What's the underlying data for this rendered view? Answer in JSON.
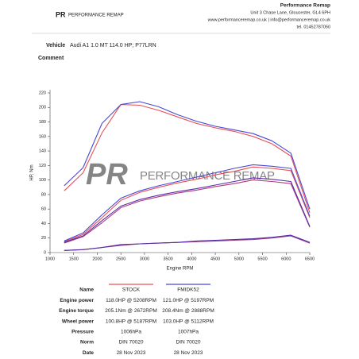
{
  "header": {
    "logo_mark": "PR",
    "logo_name": "PERFORMANCE REMAP",
    "company": "Performance Remap",
    "address": "Unit 3 Chase Lane, Gloucester, GL4 6PH",
    "web": "www.performanceremap.co.uk | info@performanceremap.co.uk",
    "phone": "tel. 01452787050"
  },
  "vehicle": {
    "label": "Vehicle",
    "value": "Audi A1 1.0 MT 114.0 HP; P77LRN"
  },
  "comment": {
    "label": "Comment"
  },
  "chart_data": {
    "type": "line",
    "ylabel": "HP, Nm",
    "xlabel": "Engine RPM",
    "x": [
      1300,
      1700,
      2100,
      2500,
      2900,
      3300,
      3700,
      4100,
      4500,
      4900,
      5300,
      5700,
      6100,
      6500
    ],
    "xlim": [
      1000,
      6500
    ],
    "xticks": [
      1000,
      1500,
      2000,
      2500,
      3000,
      3500,
      4000,
      4500,
      5000,
      5500,
      6000,
      6500
    ],
    "ylim": [
      0,
      220
    ],
    "yticks": [
      0,
      20,
      40,
      60,
      80,
      100,
      120,
      140,
      160,
      180,
      200,
      220
    ],
    "series": [
      {
        "color": "#e8505a",
        "values": [
          85,
          110,
          165,
          204,
          203,
          196,
          187,
          178,
          172,
          167,
          160,
          150,
          133,
          55
        ]
      },
      {
        "color": "#4848d4",
        "values": [
          92,
          117,
          178,
          204,
          208,
          201,
          190,
          181,
          174,
          169,
          164,
          154,
          137,
          60
        ]
      },
      {
        "color": "#e8505a",
        "values": [
          15,
          25,
          48,
          72,
          83,
          90,
          96,
          101,
          107,
          112,
          118,
          116,
          113,
          48
        ]
      },
      {
        "color": "#4848d4",
        "values": [
          16,
          27,
          52,
          75,
          85,
          92,
          98,
          104,
          110,
          116,
          121,
          119,
          116,
          50
        ]
      },
      {
        "color": "#b03a7a",
        "values": [
          13,
          22,
          41,
          62,
          71,
          77,
          82,
          86,
          91,
          95,
          100,
          98,
          95,
          35
        ]
      },
      {
        "color": "#5a2ea8",
        "values": [
          14,
          23,
          44,
          64,
          73,
          79,
          84,
          88,
          93,
          98,
          103,
          101,
          98,
          36
        ]
      },
      {
        "color": "#9a3a80",
        "values": [
          3,
          4,
          7,
          10,
          12,
          13,
          14,
          15,
          16,
          17,
          18,
          20,
          23,
          13
        ]
      },
      {
        "color": "#5a2ea8",
        "values": [
          3,
          4,
          7,
          11,
          12,
          13,
          14,
          16,
          17,
          18,
          19,
          21,
          24,
          14
        ]
      }
    ]
  },
  "table": {
    "header": [
      "Name",
      "STOCK",
      "FMIDK52"
    ],
    "rows": [
      [
        "Engine power",
        "118.0HP @ 5208RPM",
        "121.0HP @ 5197RPM"
      ],
      [
        "Engine torque",
        "205.1Nm @ 2672RPM",
        "208.4Nm @ 2888RPM"
      ],
      [
        "Wheel power",
        "100.8HP @ 5187RPM",
        "103.0HP @ 5112RPM"
      ],
      [
        "Pressure",
        "1006hPa",
        "1007hPa"
      ],
      [
        "Norm",
        "DIN 70020",
        "DIN 70020"
      ],
      [
        "Date",
        "28 Nov 2023",
        "28 Nov 2023"
      ]
    ]
  }
}
